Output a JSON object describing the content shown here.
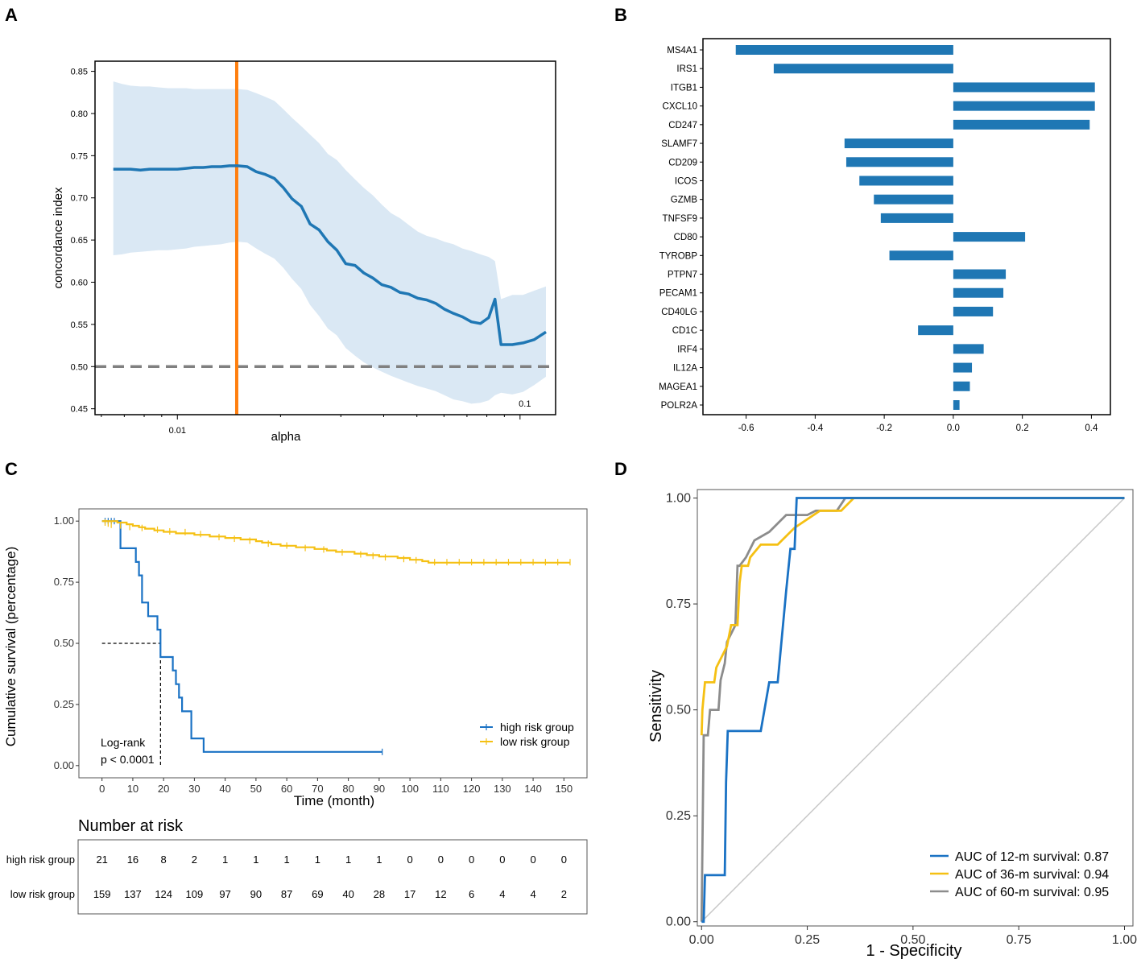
{
  "panels": {
    "a": "A",
    "b": "B",
    "c": "C",
    "d": "D"
  },
  "colors": {
    "blue": "#1f77b4",
    "orange": "#ff7f0e",
    "band": "#dae8f4",
    "gray": "#808080",
    "km_high": "#1a72c4",
    "km_low": "#f5c013",
    "roc12": "#1a72c4",
    "roc36": "#f5c013",
    "roc60": "#8c8c8c",
    "diag": "#c8c8c8"
  },
  "chart_data": [
    {
      "id": "A",
      "type": "line",
      "title": "",
      "xlabel": "alpha",
      "ylabel": "concordance index",
      "xscale": "log",
      "xlim": [
        0.00575,
        0.127
      ],
      "ylim": [
        0.443,
        0.862
      ],
      "yticks": [
        "0.45",
        "0.50",
        "0.55",
        "0.60",
        "0.65",
        "0.70",
        "0.75",
        "0.80",
        "0.85"
      ],
      "xticks": [
        {
          "v": 0.01,
          "label": "0.01"
        },
        {
          "v": 0.1,
          "label": "0.1"
        }
      ],
      "best_alpha": 0.0149,
      "reference_line": 0.5,
      "x": [
        0.0065,
        0.0069,
        0.0073,
        0.0078,
        0.0083,
        0.0088,
        0.0094,
        0.01,
        0.0106,
        0.0112,
        0.0119,
        0.0126,
        0.0134,
        0.0142,
        0.015,
        0.016,
        0.017,
        0.018,
        0.0192,
        0.0204,
        0.0216,
        0.023,
        0.0244,
        0.0259,
        0.0275,
        0.0292,
        0.031,
        0.033,
        0.035,
        0.0372,
        0.0395,
        0.042,
        0.0446,
        0.0473,
        0.0503,
        0.0534,
        0.0567,
        0.0602,
        0.064,
        0.0679,
        0.0721,
        0.0766,
        0.081,
        0.0845,
        0.088,
        0.095,
        0.102,
        0.11,
        0.119
      ],
      "mean": [
        0.734,
        0.734,
        0.734,
        0.733,
        0.734,
        0.734,
        0.734,
        0.734,
        0.735,
        0.736,
        0.736,
        0.737,
        0.737,
        0.738,
        0.738,
        0.737,
        0.731,
        0.728,
        0.723,
        0.712,
        0.699,
        0.69,
        0.669,
        0.662,
        0.648,
        0.638,
        0.622,
        0.62,
        0.611,
        0.605,
        0.597,
        0.594,
        0.588,
        0.586,
        0.581,
        0.579,
        0.575,
        0.568,
        0.563,
        0.559,
        0.553,
        0.551,
        0.558,
        0.58,
        0.526,
        0.526,
        0.528,
        0.532,
        0.541
      ],
      "upper": [
        0.838,
        0.835,
        0.833,
        0.832,
        0.832,
        0.831,
        0.83,
        0.83,
        0.83,
        0.829,
        0.829,
        0.829,
        0.829,
        0.829,
        0.829,
        0.828,
        0.824,
        0.82,
        0.815,
        0.805,
        0.795,
        0.785,
        0.775,
        0.765,
        0.752,
        0.745,
        0.733,
        0.722,
        0.712,
        0.703,
        0.692,
        0.682,
        0.676,
        0.668,
        0.66,
        0.655,
        0.652,
        0.648,
        0.645,
        0.64,
        0.637,
        0.633,
        0.63,
        0.625,
        0.58,
        0.585,
        0.585,
        0.59,
        0.595
      ],
      "lower": [
        0.632,
        0.633,
        0.635,
        0.636,
        0.637,
        0.638,
        0.638,
        0.639,
        0.64,
        0.642,
        0.643,
        0.644,
        0.645,
        0.647,
        0.648,
        0.647,
        0.64,
        0.634,
        0.628,
        0.617,
        0.604,
        0.592,
        0.573,
        0.56,
        0.545,
        0.537,
        0.522,
        0.513,
        0.505,
        0.499,
        0.494,
        0.489,
        0.485,
        0.481,
        0.477,
        0.474,
        0.471,
        0.466,
        0.461,
        0.459,
        0.456,
        0.457,
        0.46,
        0.466,
        0.469,
        0.467,
        0.47,
        0.478,
        0.488
      ],
      "annotation": "0.1"
    },
    {
      "id": "B",
      "type": "bar",
      "orientation": "horizontal",
      "categories": [
        "MS4A1",
        "IRS1",
        "ITGB1",
        "CXCL10",
        "CD247",
        "SLAMF7",
        "CD209",
        "ICOS",
        "GZMB",
        "TNFSF9",
        "CD80",
        "TYROBP",
        "PTPN7",
        "PECAM1",
        "CD40LG",
        "CD1C",
        "IRF4",
        "IL12A",
        "MAGEA1",
        "POLR2A"
      ],
      "values": [
        -0.63,
        -0.52,
        0.41,
        0.41,
        0.395,
        -0.315,
        -0.31,
        -0.272,
        -0.23,
        -0.21,
        0.208,
        -0.185,
        0.152,
        0.145,
        0.115,
        -0.102,
        0.088,
        0.054,
        0.048,
        0.018
      ],
      "xlim": [
        -0.725,
        0.455
      ],
      "xticks": [
        "-0.6",
        "-0.4",
        "-0.2",
        "0.0",
        "0.2",
        "0.4"
      ]
    },
    {
      "id": "C",
      "type": "line",
      "subtype": "kaplan-meier",
      "xlabel": "Time (month)",
      "ylabel": "Cumulative survival (percentage)",
      "xlim": [
        -7.5,
        157.5
      ],
      "ylim": [
        -0.05,
        1.05
      ],
      "xticks": [
        "0",
        "10",
        "20",
        "30",
        "40",
        "50",
        "60",
        "70",
        "80",
        "90",
        "100",
        "110",
        "120",
        "130",
        "140",
        "150"
      ],
      "yticks": [
        "0.00",
        "0.25",
        "0.50",
        "0.75",
        "1.00"
      ],
      "series": [
        {
          "name": "high risk group",
          "steps": [
            [
              0,
              1
            ],
            [
              6,
              0.889
            ],
            [
              11,
              0.833
            ],
            [
              12,
              0.778
            ],
            [
              13,
              0.667
            ],
            [
              15,
              0.611
            ],
            [
              18,
              0.556
            ],
            [
              19,
              0.444
            ],
            [
              23,
              0.389
            ],
            [
              24,
              0.333
            ],
            [
              25,
              0.278
            ],
            [
              26,
              0.222
            ],
            [
              29,
              0.111
            ],
            [
              33,
              0.056
            ],
            [
              91,
              0.056
            ]
          ],
          "censor": [
            [
              1,
              1
            ],
            [
              2,
              1
            ],
            [
              3,
              1
            ],
            [
              4,
              1
            ],
            [
              91,
              0.056
            ]
          ]
        },
        {
          "name": "low risk group",
          "steps": [
            [
              0,
              1
            ],
            [
              5,
              0.994
            ],
            [
              8,
              0.987
            ],
            [
              10,
              0.981
            ],
            [
              12,
              0.975
            ],
            [
              14,
              0.969
            ],
            [
              17,
              0.962
            ],
            [
              20,
              0.956
            ],
            [
              24,
              0.95
            ],
            [
              30,
              0.944
            ],
            [
              35,
              0.937
            ],
            [
              40,
              0.931
            ],
            [
              45,
              0.925
            ],
            [
              50,
              0.918
            ],
            [
              52,
              0.912
            ],
            [
              55,
              0.905
            ],
            [
              58,
              0.899
            ],
            [
              63,
              0.893
            ],
            [
              69,
              0.886
            ],
            [
              73,
              0.88
            ],
            [
              76,
              0.874
            ],
            [
              82,
              0.867
            ],
            [
              86,
              0.861
            ],
            [
              90,
              0.855
            ],
            [
              96,
              0.849
            ],
            [
              100,
              0.842
            ],
            [
              104,
              0.836
            ],
            [
              106,
              0.83
            ],
            [
              152,
              0.83
            ]
          ],
          "censor": [
            [
              1,
              0.994
            ],
            [
              2,
              0.99
            ],
            [
              3,
              0.985
            ],
            [
              6,
              0.982
            ],
            [
              9,
              0.976
            ],
            [
              13,
              0.972
            ],
            [
              18,
              0.965
            ],
            [
              22,
              0.958
            ],
            [
              27,
              0.955
            ],
            [
              32,
              0.947
            ],
            [
              38,
              0.935
            ],
            [
              43,
              0.928
            ],
            [
              48,
              0.92
            ],
            [
              54,
              0.908
            ],
            [
              60,
              0.9
            ],
            [
              66,
              0.89
            ],
            [
              72,
              0.884
            ],
            [
              78,
              0.872
            ],
            [
              84,
              0.864
            ],
            [
              88,
              0.858
            ],
            [
              92,
              0.852
            ],
            [
              98,
              0.845
            ],
            [
              102,
              0.84
            ],
            [
              108,
              0.832
            ],
            [
              112,
              0.832
            ],
            [
              116,
              0.832
            ],
            [
              120,
              0.832
            ],
            [
              124,
              0.832
            ],
            [
              128,
              0.832
            ],
            [
              132,
              0.832
            ],
            [
              136,
              0.832
            ],
            [
              140,
              0.832
            ],
            [
              144,
              0.832
            ],
            [
              148,
              0.832
            ],
            [
              152,
              0.832
            ]
          ]
        }
      ],
      "median_high": 19,
      "annotation_lines": [
        "Log-rank",
        "p < 0.0001"
      ],
      "risk_table": {
        "title": "Number at risk",
        "times": [
          0,
          10,
          20,
          30,
          40,
          50,
          60,
          70,
          80,
          90,
          100,
          110,
          120,
          130,
          140,
          150
        ],
        "rows": [
          {
            "label": "high risk group",
            "values": [
              "21",
              "16",
              "8",
              "2",
              "1",
              "1",
              "1",
              "1",
              "1",
              "1",
              "0",
              "0",
              "0",
              "0",
              "0",
              "0"
            ]
          },
          {
            "label": "low risk group",
            "values": [
              "159",
              "137",
              "124",
              "109",
              "97",
              "90",
              "87",
              "69",
              "40",
              "28",
              "17",
              "12",
              "6",
              "4",
              "4",
              "2"
            ]
          }
        ]
      }
    },
    {
      "id": "D",
      "type": "line",
      "subtype": "roc",
      "xlabel": "1 - Specificity",
      "ylabel": "Sensitivity",
      "xlim": [
        -0.01,
        1.02
      ],
      "ylim": [
        -0.01,
        1.02
      ],
      "xticks": [
        "0.00",
        "0.25",
        "0.50",
        "0.75",
        "1.00"
      ],
      "yticks": [
        "0.00",
        "0.25",
        "0.50",
        "0.75",
        "1.00"
      ],
      "series": [
        {
          "name": "AUC of 12-m survival: 0.87",
          "points": [
            [
              0,
              0
            ],
            [
              0.005,
              0
            ],
            [
              0.008,
              0.11
            ],
            [
              0.055,
              0.11
            ],
            [
              0.058,
              0.33
            ],
            [
              0.062,
              0.45
            ],
            [
              0.14,
              0.45
            ],
            [
              0.16,
              0.565
            ],
            [
              0.18,
              0.565
            ],
            [
              0.2,
              0.78
            ],
            [
              0.21,
              0.88
            ],
            [
              0.22,
              0.88
            ],
            [
              0.225,
              1
            ],
            [
              0.33,
              1
            ],
            [
              1,
              1
            ]
          ]
        },
        {
          "name": "AUC of 36-m survival: 0.94",
          "points": [
            [
              0,
              0.44
            ],
            [
              0.002,
              0.5
            ],
            [
              0.008,
              0.565
            ],
            [
              0.03,
              0.565
            ],
            [
              0.035,
              0.6
            ],
            [
              0.06,
              0.65
            ],
            [
              0.07,
              0.7
            ],
            [
              0.085,
              0.7
            ],
            [
              0.09,
              0.8
            ],
            [
              0.095,
              0.84
            ],
            [
              0.11,
              0.84
            ],
            [
              0.115,
              0.86
            ],
            [
              0.14,
              0.89
            ],
            [
              0.18,
              0.89
            ],
            [
              0.22,
              0.93
            ],
            [
              0.28,
              0.97
            ],
            [
              0.33,
              0.97
            ],
            [
              0.36,
              1
            ],
            [
              1,
              1
            ]
          ]
        },
        {
          "name": "AUC of 60-m survival: 0.95",
          "points": [
            [
              0,
              0
            ],
            [
              0.005,
              0.44
            ],
            [
              0.015,
              0.44
            ],
            [
              0.02,
              0.5
            ],
            [
              0.04,
              0.5
            ],
            [
              0.045,
              0.57
            ],
            [
              0.055,
              0.61
            ],
            [
              0.06,
              0.66
            ],
            [
              0.08,
              0.7
            ],
            [
              0.085,
              0.84
            ],
            [
              0.09,
              0.84
            ],
            [
              0.105,
              0.86
            ],
            [
              0.125,
              0.9
            ],
            [
              0.16,
              0.92
            ],
            [
              0.18,
              0.94
            ],
            [
              0.2,
              0.96
            ],
            [
              0.25,
              0.96
            ],
            [
              0.27,
              0.97
            ],
            [
              0.32,
              0.97
            ],
            [
              0.34,
              1
            ],
            [
              1,
              1
            ]
          ]
        }
      ],
      "diagonal": true
    }
  ]
}
